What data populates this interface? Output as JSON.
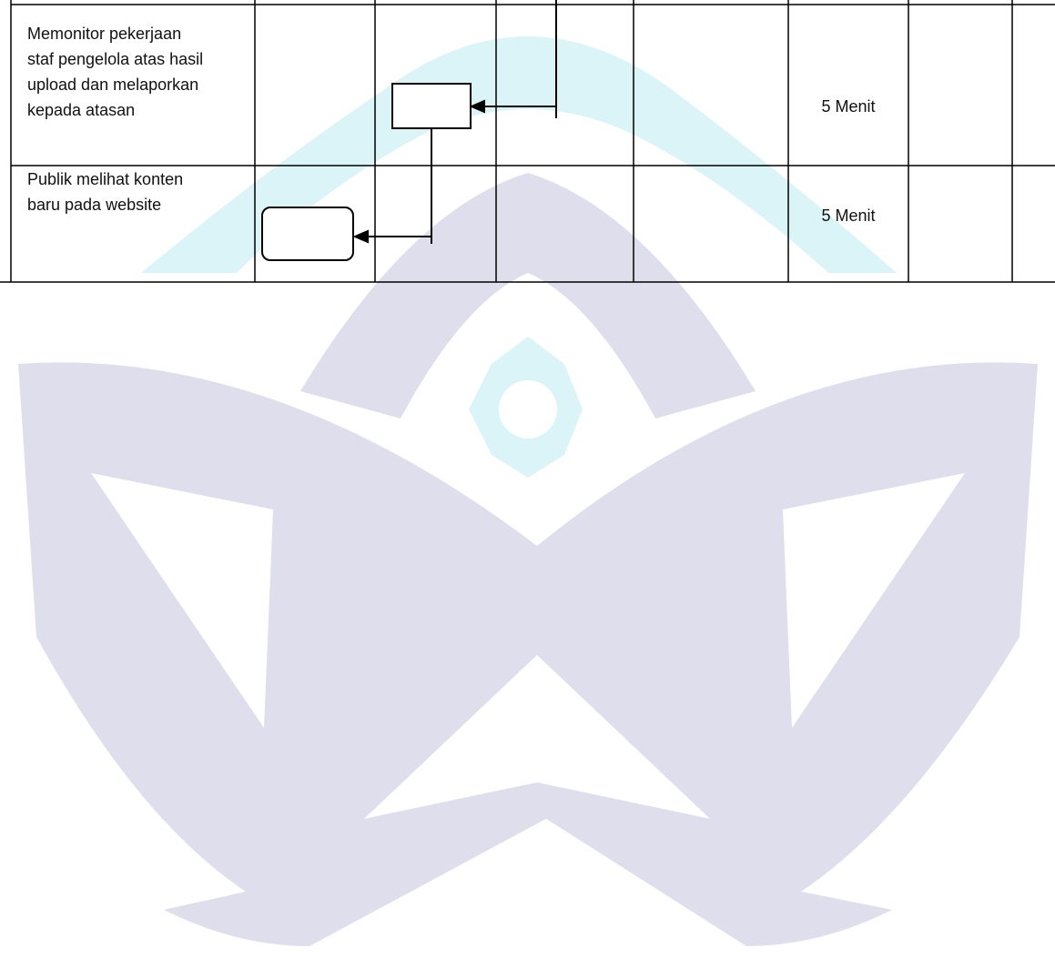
{
  "table": {
    "rows": [
      {
        "description_lines": [
          "Memonitor pekerjaan",
          "staf pengelola atas hasil",
          "upload dan melaporkan",
          "kepada atasan"
        ],
        "time": "5 Menit"
      },
      {
        "description_lines": [
          "Publik melihat konten",
          "baru pada website"
        ],
        "time": "5 Menit"
      }
    ]
  }
}
